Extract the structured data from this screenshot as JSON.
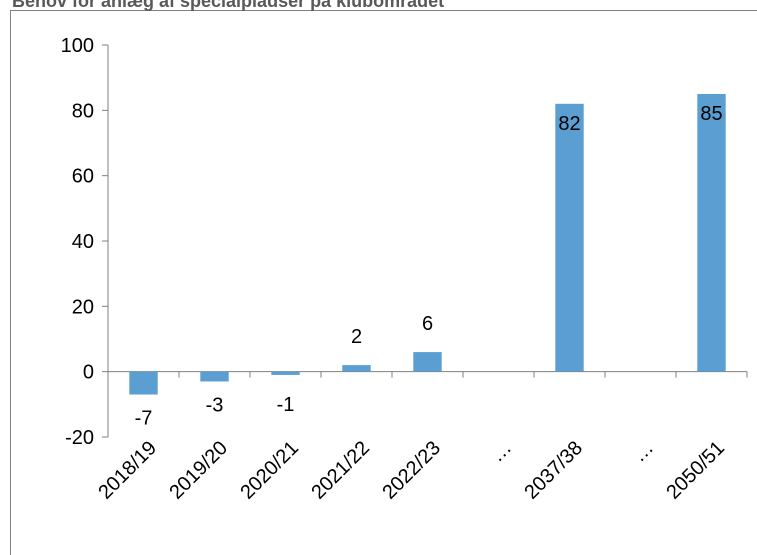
{
  "chart_data": {
    "type": "bar",
    "title": "Behov for anlæg af specialpladser på klubområdet",
    "categories": [
      "2018/19",
      "2019/20",
      "2020/21",
      "2021/22",
      "2022/23",
      "…",
      "2037/38",
      "…",
      "2050/51"
    ],
    "values": [
      -7,
      -3,
      -1,
      2,
      6,
      null,
      82,
      null,
      85
    ],
    "color": "#5b9fd2",
    "ylim": [
      -20,
      100
    ],
    "yticks": [
      -20,
      0,
      20,
      40,
      60,
      80,
      100
    ],
    "grid": false
  }
}
